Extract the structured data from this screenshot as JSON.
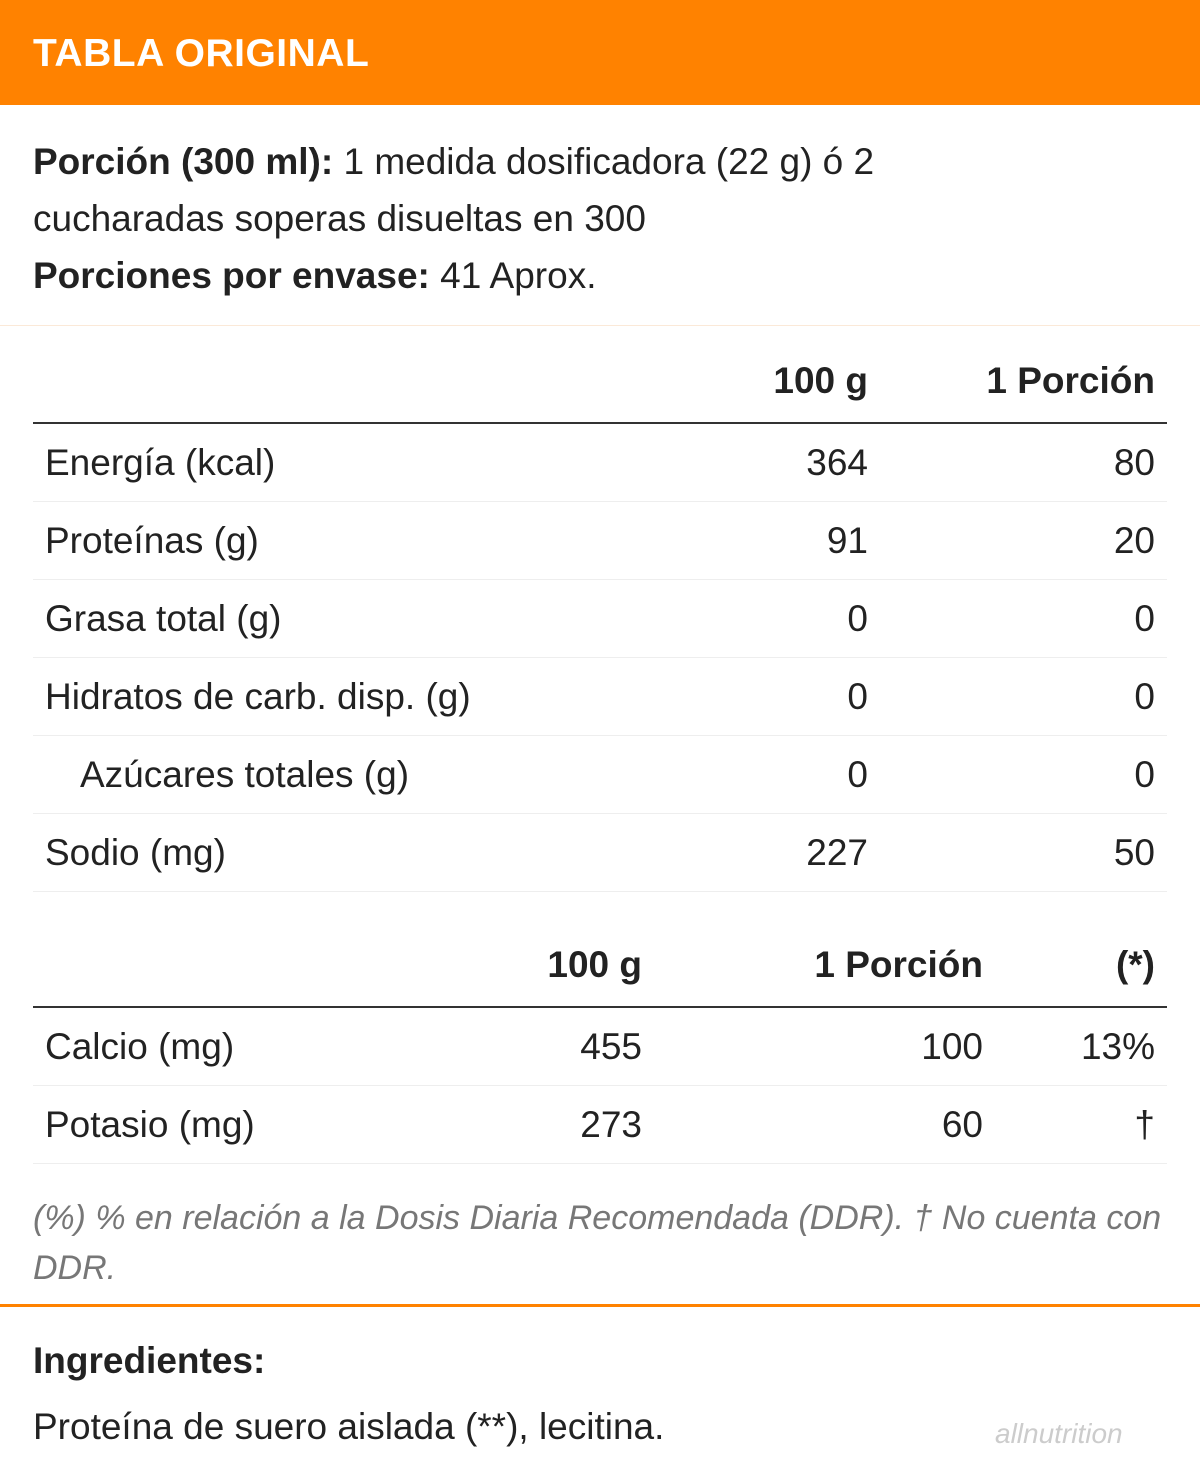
{
  "header": {
    "title": "TABLA ORIGINAL"
  },
  "serving": {
    "portion_label": "Porción (300 ml):",
    "portion_text": "1 medida dosificadora (22 g) ó 2 cucharadas soperas disueltas en 300",
    "servings_label": "Porciones por envase:",
    "servings_text": "41 Aprox."
  },
  "table_1": {
    "columns": [
      "100 g",
      "1 Porción"
    ],
    "rows": [
      [
        "Energía (kcal)",
        364,
        80
      ],
      [
        "Proteínas (g)",
        91,
        20
      ],
      [
        "Grasa total (g)",
        0,
        0
      ],
      [
        "Hidratos de carb. disp. (g)",
        0,
        0
      ],
      [
        "Azúcares totales (g)",
        0,
        0
      ],
      [
        "Sodio (mg)",
        227,
        50
      ]
    ]
  },
  "table_2": {
    "columns": [
      "100 g",
      "1 Porción",
      "(*)"
    ],
    "rows": [
      [
        "Calcio (mg)",
        455,
        100,
        "13%"
      ],
      [
        "Potasio (mg)",
        273,
        60,
        "†"
      ]
    ]
  },
  "footnote": "(%) % en relación a la Dosis Diaria Recomendada (DDR). † No cuenta con DDR.",
  "ingredients": {
    "label": "Ingredientes:",
    "text": "Proteína de suero aislada (**), lecitina."
  },
  "logo": "allnutrition"
}
